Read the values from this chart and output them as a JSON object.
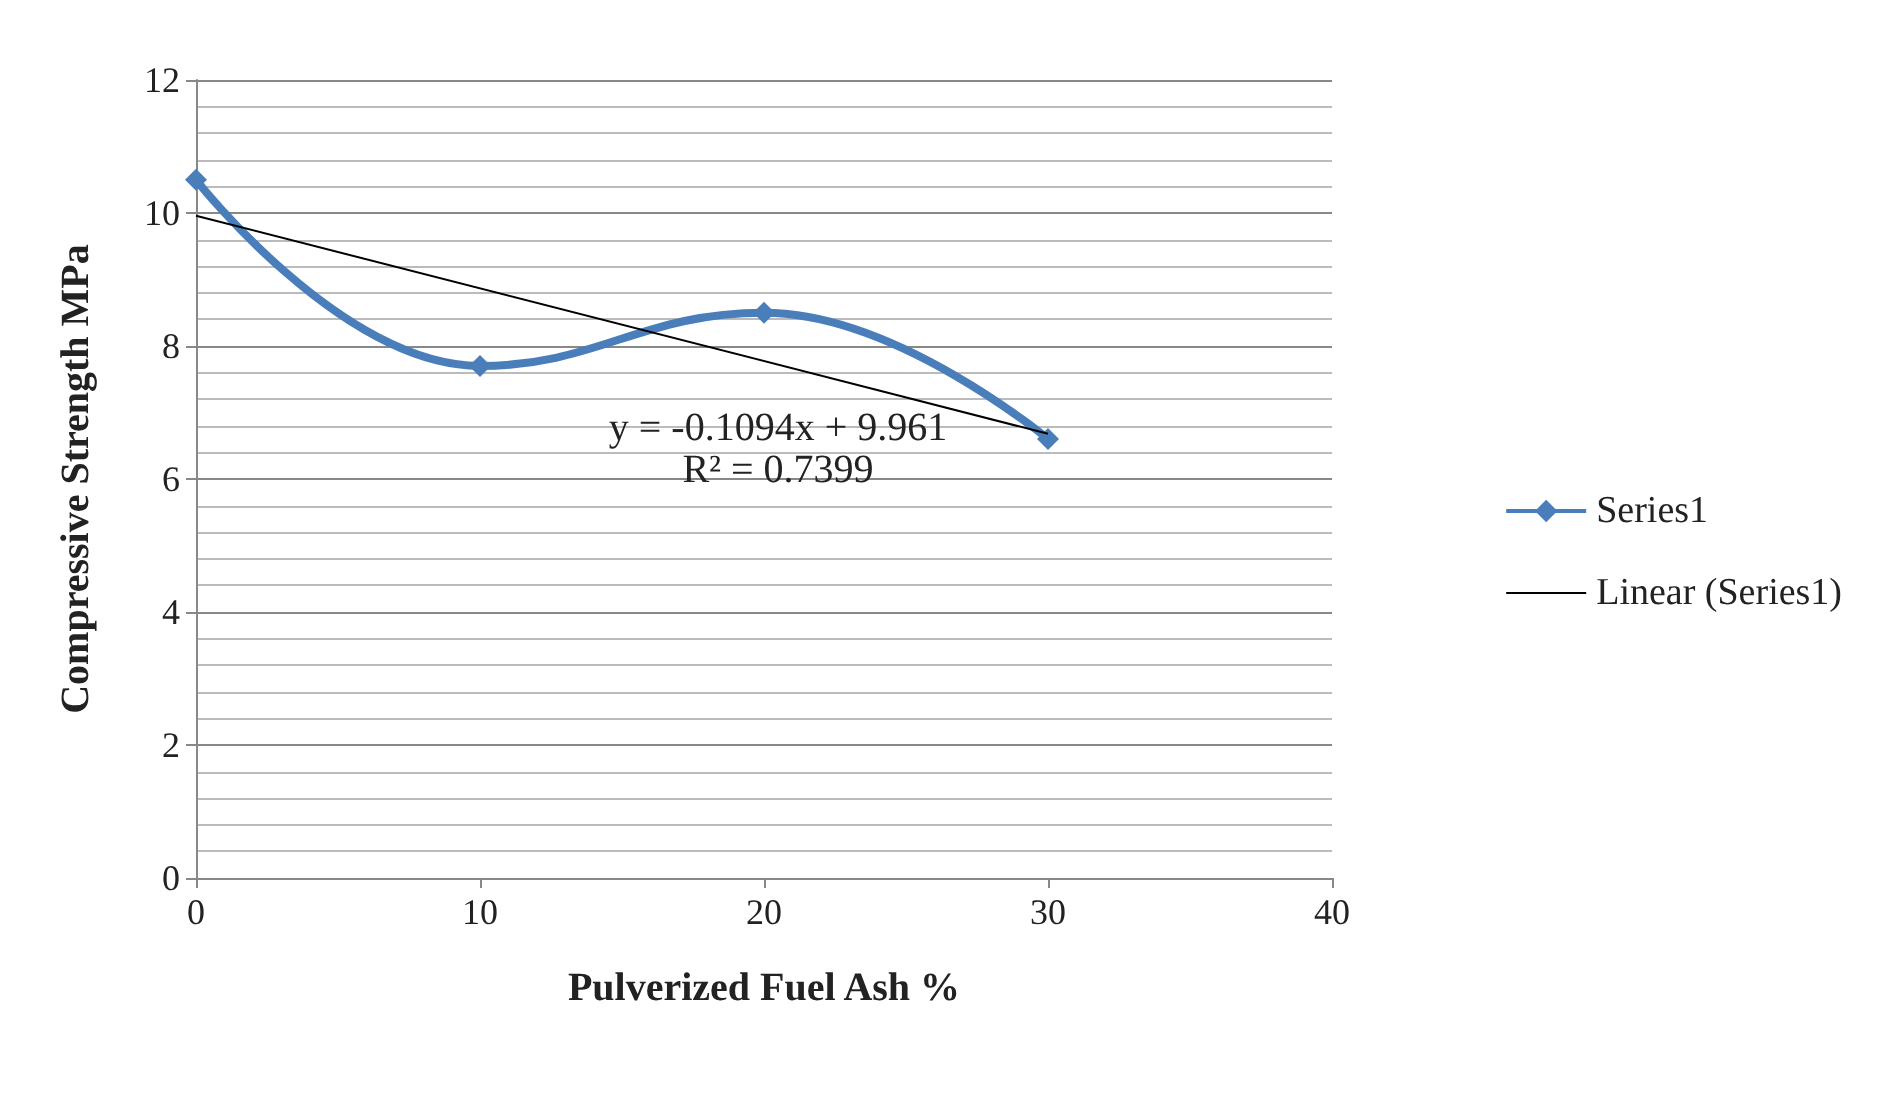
{
  "chart_data": {
    "type": "line",
    "xlabel": "Pulverized Fuel Ash %",
    "ylabel": "Compressive Strength MPa",
    "x": [
      0,
      10,
      20,
      30
    ],
    "series": [
      {
        "name": "Series1",
        "color": "#4a7ebb",
        "values": [
          10.5,
          7.7,
          8.5,
          6.6
        ],
        "marker": "diamond"
      },
      {
        "name": "Linear (Series1)",
        "color": "#000000",
        "x": [
          0,
          30
        ],
        "values": [
          9.96,
          6.68
        ],
        "marker": "none"
      }
    ],
    "xlim": [
      0,
      40
    ],
    "xticks": [
      0,
      10,
      20,
      30,
      40
    ],
    "ylim": [
      0,
      12
    ],
    "yticks": [
      0,
      2,
      4,
      6,
      8,
      10,
      12
    ],
    "grid": "y",
    "legend": "right",
    "annotations": [
      "y = -0.1094x + 9.961",
      "R² = 0.7399"
    ]
  }
}
